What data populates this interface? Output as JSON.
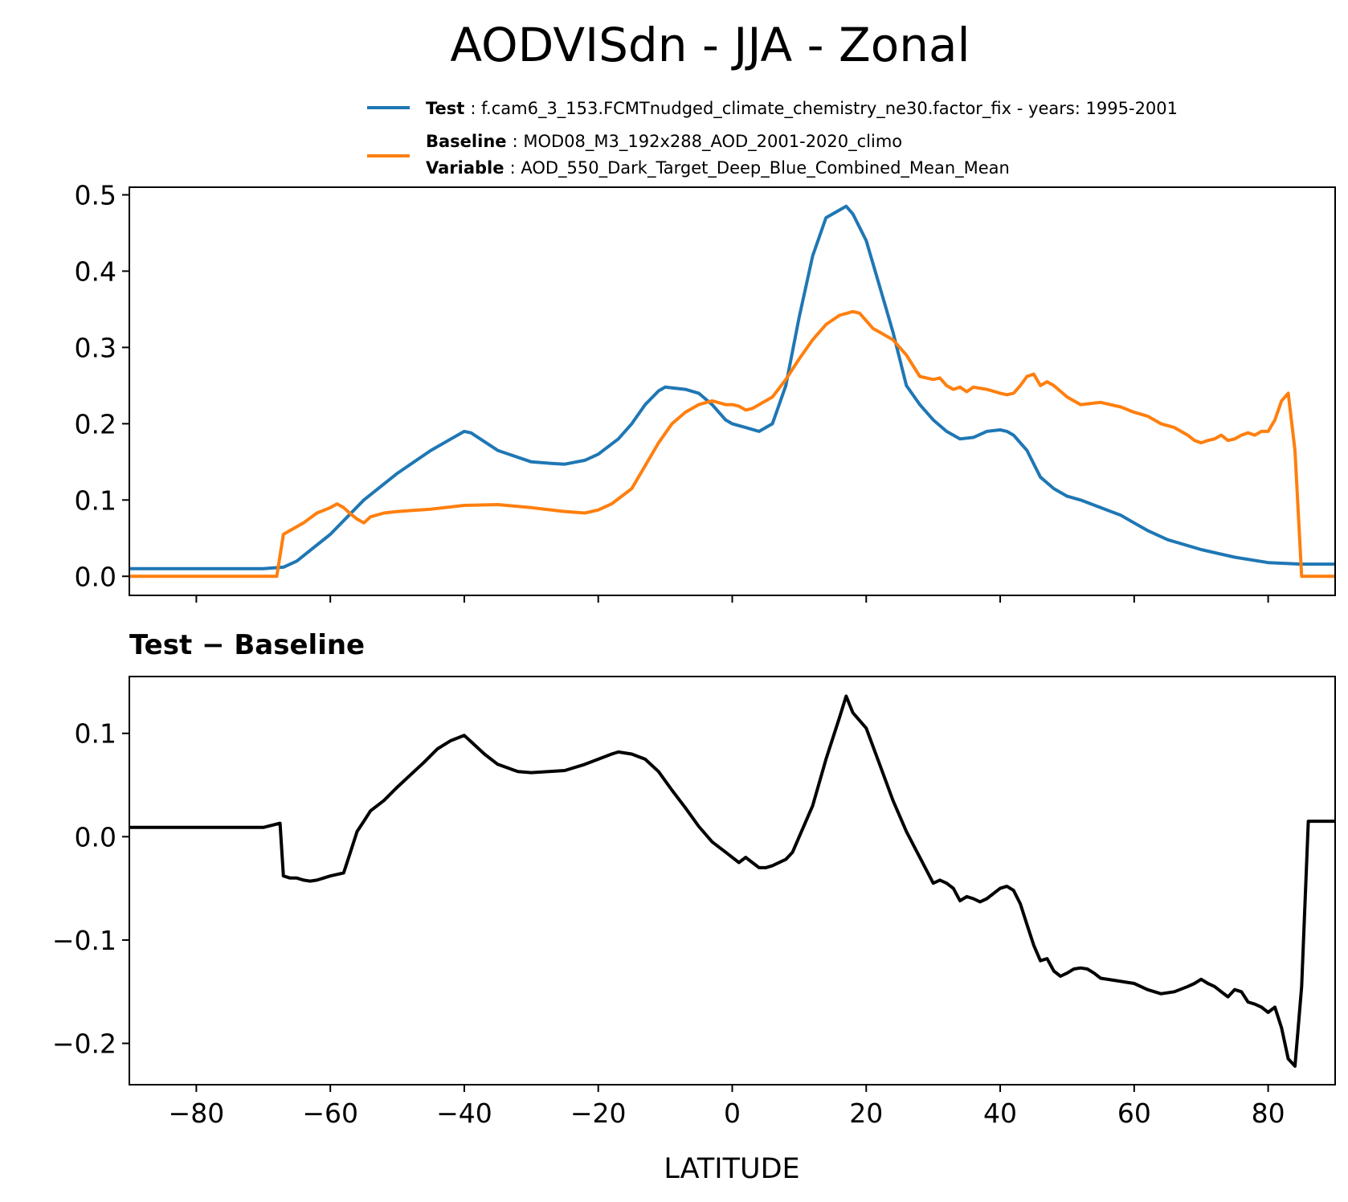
{
  "title": "AODVISdn - JJA - Zonal",
  "legend": {
    "test_label": "Test",
    "test_text": ": f.cam6_3_153.FCMTnudged_climate_chemistry_ne30.factor_fix - years: 1995-2001",
    "baseline_label": "Baseline",
    "baseline_text": ": MOD08_M3_192x288_AOD_2001-2020_climo",
    "variable_label": "Variable",
    "variable_text": ": AOD_550_Dark_Target_Deep_Blue_Combined_Mean_Mean"
  },
  "colors": {
    "test": "#1f77b4",
    "baseline": "#ff7f0e",
    "diff": "#000000"
  },
  "chart_data": [
    {
      "type": "line",
      "title": "",
      "xlabel": "",
      "ylabel": "",
      "xlim": [
        -90,
        90
      ],
      "ylim": [
        -0.025,
        0.51
      ],
      "yticks": [
        0.0,
        0.1,
        0.2,
        0.3,
        0.4,
        0.5
      ],
      "ytick_labels": [
        "0.0",
        "0.1",
        "0.2",
        "0.3",
        "0.4",
        "0.5"
      ],
      "xticks": [
        -80,
        -60,
        -40,
        -20,
        0,
        20,
        40,
        60,
        80
      ],
      "series": [
        {
          "name": "Test",
          "x": [
            -90,
            -80,
            -70,
            -67,
            -65,
            -60,
            -55,
            -50,
            -45,
            -42,
            -40,
            -39,
            -35,
            -30,
            -27,
            -25,
            -22,
            -20,
            -17,
            -15,
            -13,
            -11,
            -10,
            -9,
            -7,
            -5,
            -3,
            -1,
            0,
            2,
            4,
            6,
            8,
            10,
            12,
            14,
            16,
            17,
            18,
            20,
            22,
            24,
            26,
            28,
            30,
            32,
            34,
            36,
            38,
            40,
            41,
            42,
            44,
            46,
            48,
            50,
            52,
            55,
            58,
            60,
            62,
            65,
            70,
            75,
            80,
            85,
            90
          ],
          "values": [
            0.01,
            0.01,
            0.01,
            0.012,
            0.02,
            0.055,
            0.1,
            0.135,
            0.165,
            0.18,
            0.19,
            0.188,
            0.165,
            0.15,
            0.148,
            0.147,
            0.152,
            0.16,
            0.18,
            0.2,
            0.225,
            0.243,
            0.248,
            0.247,
            0.245,
            0.24,
            0.225,
            0.205,
            0.2,
            0.195,
            0.19,
            0.2,
            0.25,
            0.34,
            0.42,
            0.47,
            0.48,
            0.485,
            0.475,
            0.44,
            0.38,
            0.32,
            0.25,
            0.225,
            0.205,
            0.19,
            0.18,
            0.182,
            0.19,
            0.192,
            0.19,
            0.185,
            0.165,
            0.13,
            0.115,
            0.105,
            0.1,
            0.09,
            0.08,
            0.07,
            0.06,
            0.048,
            0.035,
            0.025,
            0.018,
            0.016,
            0.016
          ]
        },
        {
          "name": "Baseline",
          "x": [
            -90,
            -80,
            -68,
            -67,
            -66,
            -64,
            -62,
            -60,
            -59,
            -58,
            -57,
            -56,
            -55,
            -54,
            -52,
            -50,
            -45,
            -40,
            -35,
            -30,
            -25,
            -22,
            -20,
            -18,
            -15,
            -13,
            -11,
            -9,
            -7,
            -5,
            -3,
            -1,
            0,
            1,
            2,
            3,
            4,
            6,
            8,
            10,
            12,
            14,
            16,
            18,
            19,
            20,
            21,
            22,
            23,
            24,
            26,
            28,
            30,
            31,
            32,
            33,
            34,
            35,
            36,
            38,
            40,
            41,
            42,
            43,
            44,
            45,
            46,
            47,
            48,
            50,
            52,
            55,
            58,
            60,
            62,
            64,
            66,
            68,
            69,
            70,
            71,
            72,
            73,
            74,
            75,
            76,
            77,
            78,
            79,
            80,
            81,
            82,
            83,
            84,
            85,
            86,
            88,
            90
          ],
          "values": [
            0.0,
            0.0,
            0.0,
            0.055,
            0.06,
            0.07,
            0.083,
            0.09,
            0.095,
            0.09,
            0.082,
            0.075,
            0.07,
            0.078,
            0.083,
            0.085,
            0.088,
            0.093,
            0.094,
            0.09,
            0.085,
            0.083,
            0.087,
            0.095,
            0.115,
            0.145,
            0.175,
            0.2,
            0.215,
            0.225,
            0.23,
            0.225,
            0.225,
            0.223,
            0.218,
            0.22,
            0.225,
            0.235,
            0.258,
            0.285,
            0.31,
            0.33,
            0.342,
            0.347,
            0.345,
            0.335,
            0.325,
            0.32,
            0.315,
            0.31,
            0.29,
            0.262,
            0.258,
            0.26,
            0.25,
            0.245,
            0.248,
            0.242,
            0.248,
            0.245,
            0.24,
            0.238,
            0.24,
            0.25,
            0.262,
            0.265,
            0.25,
            0.255,
            0.25,
            0.235,
            0.225,
            0.228,
            0.222,
            0.215,
            0.21,
            0.2,
            0.195,
            0.185,
            0.178,
            0.175,
            0.178,
            0.18,
            0.185,
            0.178,
            0.18,
            0.185,
            0.188,
            0.185,
            0.19,
            0.19,
            0.205,
            0.23,
            0.24,
            0.165,
            0.0,
            0.0,
            0.0,
            0.0
          ]
        }
      ]
    },
    {
      "type": "line",
      "title": "Test − Baseline",
      "xlabel": "LATITUDE",
      "ylabel": "",
      "xlim": [
        -90,
        90
      ],
      "ylim": [
        -0.24,
        0.155
      ],
      "yticks": [
        -0.2,
        -0.1,
        0.0,
        0.1
      ],
      "ytick_labels": [
        "−0.2",
        "−0.1",
        "0.0",
        "0.1"
      ],
      "xticks": [
        -80,
        -60,
        -40,
        -20,
        0,
        20,
        40,
        60,
        80
      ],
      "xtick_labels": [
        "−80",
        "−60",
        "−40",
        "−20",
        "0",
        "20",
        "40",
        "60",
        "80"
      ],
      "series": [
        {
          "name": "Test − Baseline",
          "x": [
            -90,
            -80,
            -70,
            -67.5,
            -67,
            -66,
            -65,
            -64,
            -63,
            -62,
            -61,
            -60,
            -58,
            -57,
            -56,
            -55,
            -54,
            -52,
            -50,
            -48,
            -46,
            -44,
            -42,
            -40,
            -39,
            -37,
            -35,
            -32,
            -30,
            -25,
            -22,
            -20,
            -18,
            -17,
            -15,
            -13,
            -11,
            -9,
            -7,
            -5,
            -3,
            -1,
            0,
            1,
            2,
            3,
            4,
            5,
            6,
            8,
            9,
            10,
            12,
            14,
            16,
            17,
            18,
            20,
            22,
            24,
            26,
            28,
            30,
            31,
            32,
            33,
            34,
            35,
            36,
            37,
            38,
            40,
            41,
            42,
            43,
            44,
            45,
            46,
            47,
            48,
            49,
            50,
            51,
            52,
            53,
            54,
            55,
            58,
            60,
            62,
            64,
            66,
            68,
            69,
            70,
            71,
            72,
            73,
            74,
            75,
            76,
            77,
            78,
            79,
            80,
            81,
            82,
            83,
            84,
            85,
            86,
            88,
            90
          ],
          "values": [
            0.009,
            0.009,
            0.009,
            0.013,
            -0.038,
            -0.04,
            -0.04,
            -0.042,
            -0.043,
            -0.042,
            -0.04,
            -0.038,
            -0.035,
            -0.015,
            0.005,
            0.015,
            0.025,
            0.035,
            0.048,
            0.06,
            0.072,
            0.085,
            0.093,
            0.098,
            0.092,
            0.08,
            0.07,
            0.063,
            0.062,
            0.064,
            0.07,
            0.075,
            0.08,
            0.082,
            0.08,
            0.075,
            0.063,
            0.045,
            0.028,
            0.01,
            -0.005,
            -0.015,
            -0.02,
            -0.025,
            -0.02,
            -0.025,
            -0.03,
            -0.03,
            -0.028,
            -0.022,
            -0.015,
            0.0,
            0.03,
            0.075,
            0.115,
            0.136,
            0.12,
            0.105,
            0.07,
            0.035,
            0.005,
            -0.02,
            -0.045,
            -0.042,
            -0.045,
            -0.05,
            -0.062,
            -0.058,
            -0.06,
            -0.063,
            -0.06,
            -0.05,
            -0.048,
            -0.052,
            -0.065,
            -0.085,
            -0.105,
            -0.12,
            -0.118,
            -0.13,
            -0.135,
            -0.132,
            -0.128,
            -0.127,
            -0.128,
            -0.132,
            -0.137,
            -0.14,
            -0.142,
            -0.148,
            -0.152,
            -0.15,
            -0.145,
            -0.142,
            -0.138,
            -0.142,
            -0.145,
            -0.15,
            -0.155,
            -0.148,
            -0.15,
            -0.16,
            -0.162,
            -0.165,
            -0.17,
            -0.165,
            -0.185,
            -0.215,
            -0.222,
            -0.145,
            0.015,
            0.015,
            0.015
          ]
        }
      ]
    }
  ]
}
